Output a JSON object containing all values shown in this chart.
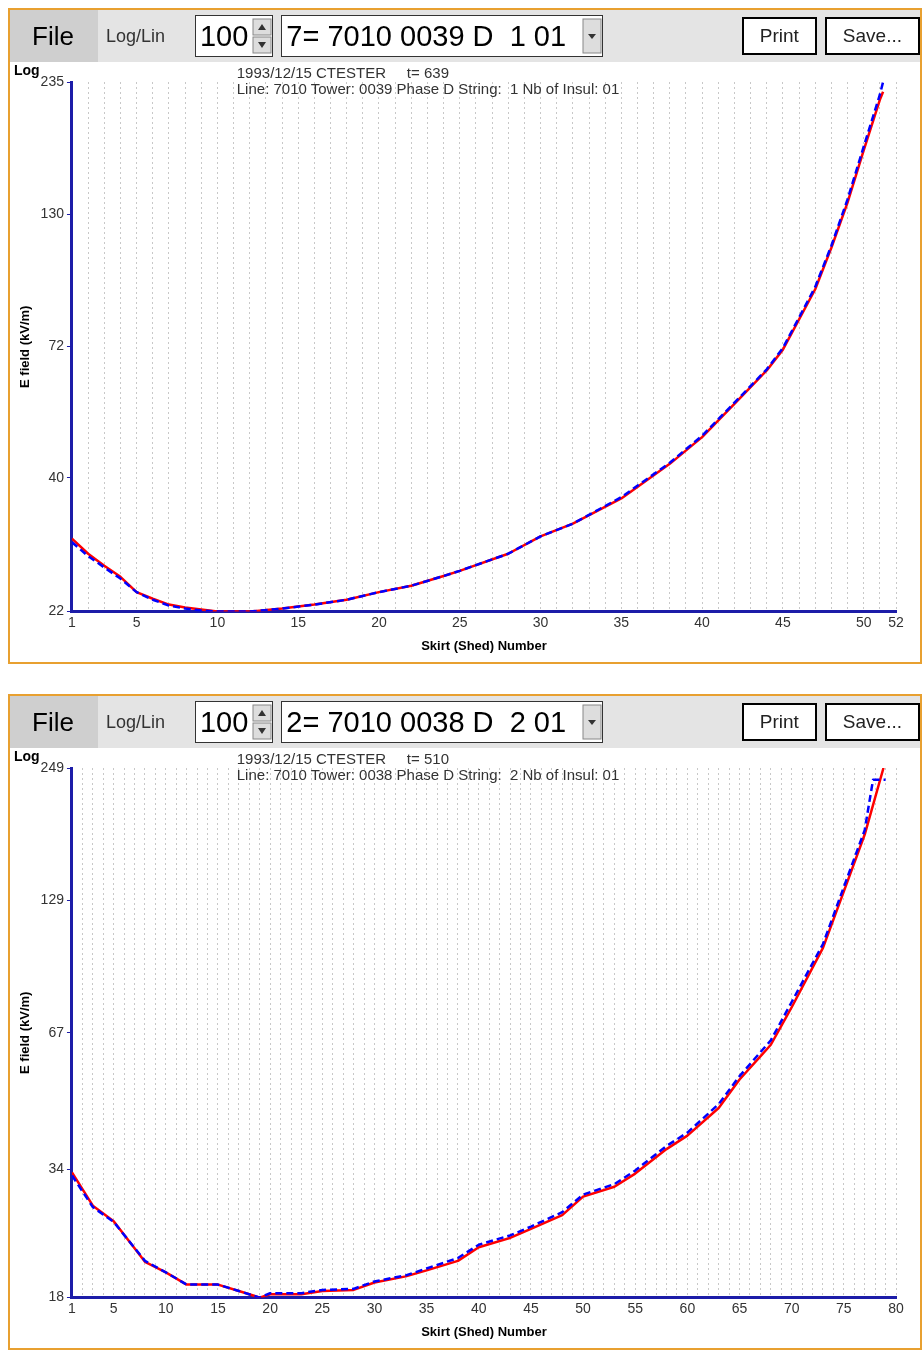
{
  "chart_data": [
    {
      "type": "line",
      "title": "1993/12/15 CTESTER     t= 639",
      "subtitle": "Line: 7010 Tower: 0039 Phase D String:  1 Nb of Insul: 01",
      "xlabel": "Skirt (Shed) Number",
      "ylabel": "E field (kV/m)",
      "annotations": [
        "File",
        "Log/Lin",
        "100",
        "7= 7010 0039 D  1 01",
        "Print",
        "Save...",
        "Log"
      ],
      "log": "y",
      "grid": "x",
      "marker": "none",
      "xlim": [
        1,
        52
      ],
      "ylim": [
        22,
        235
      ],
      "yticks": [
        22,
        40,
        72,
        130,
        235
      ],
      "xticks": [
        1,
        {
          "value": 2,
          "label": null
        },
        {
          "value": 3,
          "label": null
        },
        {
          "value": 4,
          "label": null
        },
        5,
        {
          "value": 6,
          "label": null
        },
        {
          "value": 7,
          "label": null
        },
        {
          "value": 8,
          "label": null
        },
        {
          "value": 9,
          "label": null
        },
        10,
        {
          "value": 11,
          "label": null
        },
        {
          "value": 12,
          "label": null
        },
        {
          "value": 13,
          "label": null
        },
        {
          "value": 14,
          "label": null
        },
        15,
        {
          "value": 16,
          "label": null
        },
        {
          "value": 17,
          "label": null
        },
        {
          "value": 18,
          "label": null
        },
        {
          "value": 19,
          "label": null
        },
        20,
        {
          "value": 21,
          "label": null
        },
        {
          "value": 22,
          "label": null
        },
        {
          "value": 23,
          "label": null
        },
        {
          "value": 24,
          "label": null
        },
        25,
        {
          "value": 26,
          "label": null
        },
        {
          "value": 27,
          "label": null
        },
        {
          "value": 28,
          "label": null
        },
        {
          "value": 29,
          "label": null
        },
        30,
        {
          "value": 31,
          "label": null
        },
        {
          "value": 32,
          "label": null
        },
        {
          "value": 33,
          "label": null
        },
        {
          "value": 34,
          "label": null
        },
        35,
        {
          "value": 36,
          "label": null
        },
        {
          "value": 37,
          "label": null
        },
        {
          "value": 38,
          "label": null
        },
        {
          "value": 39,
          "label": null
        },
        40,
        {
          "value": 41,
          "label": null
        },
        {
          "value": 42,
          "label": null
        },
        {
          "value": 43,
          "label": null
        },
        {
          "value": 44,
          "label": null
        },
        45,
        {
          "value": 46,
          "label": null
        },
        {
          "value": 47,
          "label": null
        },
        {
          "value": 48,
          "label": null
        },
        {
          "value": 49,
          "label": null
        },
        50,
        {
          "value": 51,
          "label": null
        },
        52
      ],
      "series": [
        {
          "color": "#ff0000",
          "line_style": "solid",
          "x": [
            1,
            2,
            3,
            4,
            5,
            6,
            7,
            8,
            9,
            10,
            12,
            14,
            16,
            18,
            20,
            22,
            24,
            25,
            28,
            30,
            32,
            35,
            38,
            40,
            42,
            44,
            45,
            47,
            48,
            49,
            50,
            51,
            51.2
          ],
          "values": [
            30.5,
            28.5,
            27,
            25.7,
            24,
            23.3,
            22.7,
            22.4,
            22.2,
            22,
            22,
            22.3,
            22.7,
            23.2,
            24,
            24.7,
            25.8,
            26.4,
            28.5,
            30.8,
            32.6,
            36.5,
            42.6,
            48,
            55.7,
            64.7,
            71,
            93,
            112,
            137,
            173,
            217,
            225
          ]
        },
        {
          "color": "#0000ff",
          "line_style": "dashed",
          "x": [
            1,
            2,
            3,
            4,
            5,
            6,
            7,
            8,
            9,
            10,
            12,
            14,
            16,
            18,
            20,
            22,
            24,
            25,
            28,
            30,
            32,
            35,
            38,
            40,
            42,
            44,
            45,
            47,
            48,
            49,
            50,
            51,
            51.2
          ],
          "values": [
            30,
            28.2,
            26.8,
            25.5,
            24,
            23.2,
            22.6,
            22.3,
            22.1,
            22,
            22,
            22.3,
            22.7,
            23.2,
            24,
            24.7,
            25.8,
            26.4,
            28.5,
            30.8,
            32.6,
            36.7,
            42.8,
            48.3,
            56,
            65,
            71.5,
            94,
            113,
            139,
            176,
            222,
            235
          ]
        }
      ]
    },
    {
      "type": "line",
      "title": "1993/12/15 CTESTER     t= 510",
      "subtitle": "Line: 7010 Tower: 0038 Phase D String:  2 Nb of Insul: 01",
      "xlabel": "Skirt (Shed) Number",
      "ylabel": "E field (kV/m)",
      "annotations": [
        "File",
        "Log/Lin",
        "100",
        "2= 7010 0038 D  2 01",
        "Print",
        "Save...",
        "Log"
      ],
      "log": "y",
      "grid": "x",
      "marker": "none",
      "xlim": [
        1,
        80
      ],
      "ylim": [
        18,
        249
      ],
      "yticks": [
        18,
        34,
        67,
        129,
        249
      ],
      "xticks": [
        1,
        {
          "value": 2,
          "label": null
        },
        {
          "value": 3,
          "label": null
        },
        {
          "value": 4,
          "label": null
        },
        5,
        {
          "value": 6,
          "label": null
        },
        {
          "value": 7,
          "label": null
        },
        {
          "value": 8,
          "label": null
        },
        {
          "value": 9,
          "label": null
        },
        10,
        {
          "value": 11,
          "label": null
        },
        {
          "value": 12,
          "label": null
        },
        {
          "value": 13,
          "label": null
        },
        {
          "value": 14,
          "label": null
        },
        15,
        {
          "value": 16,
          "label": null
        },
        {
          "value": 17,
          "label": null
        },
        {
          "value": 18,
          "label": null
        },
        {
          "value": 19,
          "label": null
        },
        20,
        {
          "value": 21,
          "label": null
        },
        {
          "value": 22,
          "label": null
        },
        {
          "value": 23,
          "label": null
        },
        {
          "value": 24,
          "label": null
        },
        25,
        {
          "value": 26,
          "label": null
        },
        {
          "value": 27,
          "label": null
        },
        {
          "value": 28,
          "label": null
        },
        {
          "value": 29,
          "label": null
        },
        30,
        {
          "value": 31,
          "label": null
        },
        {
          "value": 32,
          "label": null
        },
        {
          "value": 33,
          "label": null
        },
        {
          "value": 34,
          "label": null
        },
        35,
        {
          "value": 36,
          "label": null
        },
        {
          "value": 37,
          "label": null
        },
        {
          "value": 38,
          "label": null
        },
        {
          "value": 39,
          "label": null
        },
        40,
        {
          "value": 41,
          "label": null
        },
        {
          "value": 42,
          "label": null
        },
        {
          "value": 43,
          "label": null
        },
        {
          "value": 44,
          "label": null
        },
        45,
        {
          "value": 46,
          "label": null
        },
        {
          "value": 47,
          "label": null
        },
        {
          "value": 48,
          "label": null
        },
        {
          "value": 49,
          "label": null
        },
        50,
        {
          "value": 51,
          "label": null
        },
        {
          "value": 52,
          "label": null
        },
        {
          "value": 53,
          "label": null
        },
        {
          "value": 54,
          "label": null
        },
        55,
        {
          "value": 56,
          "label": null
        },
        {
          "value": 57,
          "label": null
        },
        {
          "value": 58,
          "label": null
        },
        {
          "value": 59,
          "label": null
        },
        60,
        {
          "value": 61,
          "label": null
        },
        {
          "value": 62,
          "label": null
        },
        {
          "value": 63,
          "label": null
        },
        {
          "value": 64,
          "label": null
        },
        65,
        {
          "value": 66,
          "label": null
        },
        {
          "value": 67,
          "label": null
        },
        {
          "value": 68,
          "label": null
        },
        {
          "value": 69,
          "label": null
        },
        70,
        {
          "value": 71,
          "label": null
        },
        {
          "value": 72,
          "label": null
        },
        {
          "value": 73,
          "label": null
        },
        {
          "value": 74,
          "label": null
        },
        75,
        {
          "value": 76,
          "label": null
        },
        {
          "value": 77,
          "label": null
        },
        {
          "value": 78,
          "label": null
        },
        {
          "value": 79,
          "label": null
        },
        80
      ],
      "series": [
        {
          "color": "#ff0000",
          "line_style": "solid",
          "x": [
            1,
            3,
            5,
            8,
            10,
            12,
            15,
            17,
            19,
            20,
            23,
            25,
            28,
            30,
            33,
            35,
            38,
            40,
            43,
            45,
            48,
            50,
            53,
            55,
            58,
            60,
            63,
            65,
            68,
            70,
            73,
            75,
            77,
            78.8
          ],
          "values": [
            33.5,
            28.4,
            26.3,
            21.5,
            20.4,
            19.2,
            19.2,
            18.6,
            18,
            18.3,
            18.3,
            18.6,
            18.7,
            19.4,
            20,
            20.6,
            21.6,
            23.1,
            24.2,
            25.3,
            27.1,
            29.7,
            31.2,
            33.3,
            37.6,
            40.2,
            46.1,
            53.1,
            63.1,
            76,
            102,
            135,
            179,
            249
          ]
        },
        {
          "color": "#0000ff",
          "line_style": "dashed",
          "x": [
            1,
            3,
            5,
            8,
            10,
            12,
            15,
            17,
            19,
            20,
            23,
            25,
            28,
            30,
            33,
            35,
            38,
            40,
            43,
            45,
            48,
            50,
            53,
            55,
            58,
            60,
            63,
            65,
            68,
            70,
            73,
            75,
            77,
            77.8,
            79
          ],
          "values": [
            33,
            28.2,
            26.2,
            21.6,
            20.4,
            19.2,
            19.2,
            18.6,
            18,
            18.4,
            18.4,
            18.7,
            18.8,
            19.5,
            20.1,
            20.8,
            21.9,
            23.4,
            24.5,
            25.6,
            27.5,
            30,
            31.6,
            33.8,
            38.2,
            40.8,
            47,
            54,
            64.5,
            78,
            104,
            138,
            183,
            235,
            235
          ]
        }
      ]
    }
  ]
}
